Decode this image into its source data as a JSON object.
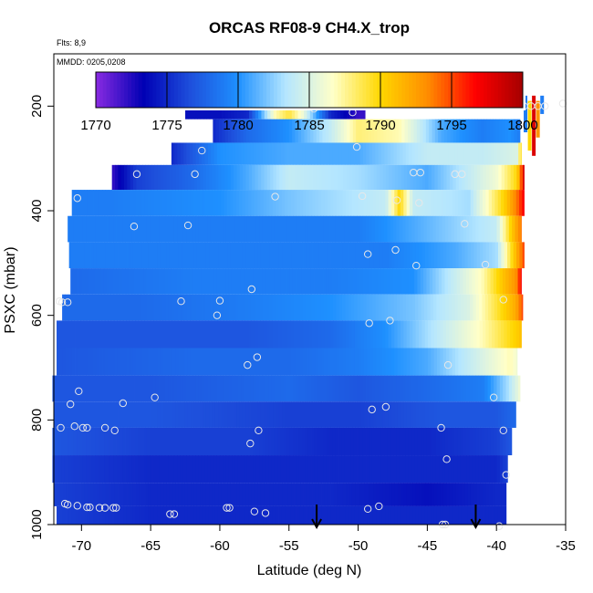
{
  "chart_data": {
    "type": "heatmap",
    "title": "ORCAS RF08-9 CH4.X_trop",
    "notes": {
      "flights": "Flts: 8,9",
      "dates": "MMDD: 0205,0208"
    },
    "xlabel": "Latitude (deg N)",
    "ylabel": "PSXC (mbar)",
    "xlim": [
      -72,
      -35
    ],
    "ylim": [
      1000,
      100
    ],
    "x_ticks": [
      -70,
      -65,
      -60,
      -55,
      -50,
      -45,
      -40,
      -35
    ],
    "y_ticks": [
      200,
      400,
      600,
      800,
      1000
    ],
    "colorbar": {
      "range": [
        1770,
        1800
      ],
      "ticks": [
        1770,
        1775,
        1780,
        1785,
        1790,
        1795,
        1800
      ],
      "colors": [
        "#8a2be2",
        "#0000b4",
        "#1e50dc",
        "#1e90ff",
        "#b4e6ff",
        "#ffffc8",
        "#ffd700",
        "#ff8c00",
        "#ff0000",
        "#a50000"
      ]
    },
    "layers": [
      {
        "p": 200,
        "lat_min": -62.5,
        "lat_max": -49.5,
        "values": [
          [
            -62.5,
            1774
          ],
          [
            -60,
            1774
          ],
          [
            -58,
            1775
          ],
          [
            -56,
            1787
          ],
          [
            -55,
            1789
          ],
          [
            -54,
            1786
          ],
          [
            -52,
            1775
          ],
          [
            -50,
            1772
          ]
        ]
      },
      {
        "p": 250,
        "lat_min": -60.5,
        "lat_max": -38.3,
        "values": [
          [
            -60.5,
            1775
          ],
          [
            -58,
            1778
          ],
          [
            -55,
            1780
          ],
          [
            -52,
            1784
          ],
          [
            -50,
            1788
          ],
          [
            -47,
            1787
          ],
          [
            -44,
            1781
          ],
          [
            -41,
            1779
          ],
          [
            -39,
            1780
          ],
          [
            -38.3,
            1779
          ]
        ]
      },
      {
        "p": 290,
        "lat_min": -63.5,
        "lat_max": -38.2,
        "values": [
          [
            -63.5,
            1775
          ],
          [
            -60,
            1780
          ],
          [
            -55,
            1781
          ],
          [
            -50,
            1781
          ],
          [
            -45,
            1784
          ],
          [
            -41,
            1784
          ],
          [
            -38.5,
            1785
          ],
          [
            -38.2,
            1790
          ]
        ]
      },
      {
        "p": 335,
        "lat_min": -67.8,
        "lat_max": -38.0,
        "values": [
          [
            -67.8,
            1772
          ],
          [
            -66,
            1776
          ],
          [
            -62,
            1778
          ],
          [
            -58,
            1781
          ],
          [
            -55,
            1784
          ],
          [
            -50,
            1783
          ],
          [
            -45,
            1781
          ],
          [
            -40,
            1786
          ],
          [
            -38.5,
            1790
          ],
          [
            -38,
            1798
          ]
        ]
      },
      {
        "p": 385,
        "lat_min": -70.7,
        "lat_max": -38.0,
        "values": [
          [
            -70.7,
            1779
          ],
          [
            -68,
            1779
          ],
          [
            -60,
            1780
          ],
          [
            -55,
            1782
          ],
          [
            -48,
            1784
          ],
          [
            -47,
            1790
          ],
          [
            -46,
            1784
          ],
          [
            -42,
            1783
          ],
          [
            -39.5,
            1790
          ],
          [
            -38.5,
            1794
          ],
          [
            -38,
            1797
          ]
        ]
      },
      {
        "p": 435,
        "lat_min": -71.0,
        "lat_max": -38.2,
        "values": [
          [
            -71,
            1779
          ],
          [
            -60,
            1779
          ],
          [
            -50,
            1779
          ],
          [
            -44,
            1782
          ],
          [
            -40,
            1784
          ],
          [
            -39,
            1790
          ],
          [
            -38.2,
            1794
          ]
        ]
      },
      {
        "p": 485,
        "lat_min": -70.9,
        "lat_max": -38.0,
        "values": [
          [
            -70.9,
            1779
          ],
          [
            -60,
            1779
          ],
          [
            -48,
            1779
          ],
          [
            -43,
            1781
          ],
          [
            -40,
            1783
          ],
          [
            -39,
            1789
          ],
          [
            -38,
            1795
          ]
        ]
      },
      {
        "p": 535,
        "lat_min": -70.8,
        "lat_max": -38.2,
        "values": [
          [
            -70.8,
            1778
          ],
          [
            -62,
            1779
          ],
          [
            -52,
            1779
          ],
          [
            -46,
            1780
          ],
          [
            -41,
            1787
          ],
          [
            -39.5,
            1791
          ],
          [
            -38.6,
            1793
          ],
          [
            -38.2,
            1797
          ]
        ]
      },
      {
        "p": 585,
        "lat_min": -71.4,
        "lat_max": -38.1,
        "values": [
          [
            -71.4,
            1778
          ],
          [
            -66,
            1778
          ],
          [
            -58,
            1779
          ],
          [
            -52,
            1780
          ],
          [
            -46,
            1782
          ],
          [
            -42,
            1785
          ],
          [
            -40,
            1789
          ],
          [
            -38.6,
            1792
          ],
          [
            -38.1,
            1795
          ]
        ]
      },
      {
        "p": 635,
        "lat_min": -71.8,
        "lat_max": -38.2,
        "values": [
          [
            -71.8,
            1777
          ],
          [
            -65,
            1777
          ],
          [
            -58,
            1777
          ],
          [
            -52,
            1778
          ],
          [
            -48,
            1780
          ],
          [
            -44,
            1784
          ],
          [
            -41,
            1787
          ],
          [
            -38.8,
            1790
          ],
          [
            -38.2,
            1791
          ]
        ]
      },
      {
        "p": 690,
        "lat_min": -71.8,
        "lat_max": -38.5,
        "values": [
          [
            -71.8,
            1777
          ],
          [
            -62,
            1778
          ],
          [
            -55,
            1778
          ],
          [
            -50,
            1779
          ],
          [
            -45,
            1781
          ],
          [
            -41,
            1785
          ],
          [
            -39,
            1787
          ],
          [
            -38.5,
            1786
          ]
        ]
      },
      {
        "p": 740,
        "lat_min": -72.1,
        "lat_max": -38.3,
        "values": [
          [
            -72.1,
            1777
          ],
          [
            -65,
            1777
          ],
          [
            -55,
            1778
          ],
          [
            -50,
            1777
          ],
          [
            -45,
            1778
          ],
          [
            -41,
            1779
          ],
          [
            -39.2,
            1783
          ],
          [
            -38.3,
            1786
          ]
        ]
      },
      {
        "p": 790,
        "lat_min": -72.0,
        "lat_max": -38.6,
        "values": [
          [
            -72,
            1777
          ],
          [
            -65,
            1777
          ],
          [
            -55,
            1776
          ],
          [
            -50,
            1776
          ],
          [
            -44,
            1777
          ],
          [
            -40,
            1777
          ],
          [
            -38.6,
            1778
          ]
        ]
      },
      {
        "p": 840,
        "lat_min": -72.1,
        "lat_max": -38.9,
        "values": [
          [
            -72.1,
            1777
          ],
          [
            -65,
            1776
          ],
          [
            -58,
            1776
          ],
          [
            -52,
            1775
          ],
          [
            -45,
            1775
          ],
          [
            -40,
            1776
          ],
          [
            -38.9,
            1777
          ]
        ]
      },
      {
        "p": 895,
        "lat_min": -72.1,
        "lat_max": -39.2,
        "values": [
          [
            -72.1,
            1776
          ],
          [
            -65,
            1775
          ],
          [
            -58,
            1775
          ],
          [
            -52,
            1775
          ],
          [
            -45,
            1775
          ],
          [
            -40,
            1775
          ],
          [
            -39.2,
            1776
          ]
        ]
      },
      {
        "p": 945,
        "lat_min": -72.0,
        "lat_max": -39.3,
        "values": [
          [
            -72,
            1776
          ],
          [
            -65,
            1775
          ],
          [
            -58,
            1775
          ],
          [
            -52,
            1775
          ],
          [
            -45,
            1774
          ],
          [
            -40,
            1775
          ],
          [
            -39.3,
            1775
          ]
        ]
      },
      {
        "p": 985,
        "lat_min": -71.8,
        "lat_max": -39.3,
        "values": [
          [
            -71.8,
            1776
          ],
          [
            -65,
            1775
          ],
          [
            -58,
            1775
          ],
          [
            -52,
            1775
          ],
          [
            -45,
            1775
          ],
          [
            -40,
            1775
          ],
          [
            -39.3,
            1775
          ]
        ]
      }
    ],
    "stripes": [
      {
        "lat": -37.9,
        "p_min": 180,
        "p_max": 250,
        "value": 1779
      },
      {
        "lat": -37.6,
        "p_min": 190,
        "p_max": 285,
        "value": 1790
      },
      {
        "lat": -37.3,
        "p_min": 180,
        "p_max": 295,
        "value": 1798
      },
      {
        "lat": -37.0,
        "p_min": 190,
        "p_max": 260,
        "value": 1793
      },
      {
        "lat": -36.7,
        "p_min": 180,
        "p_max": 215,
        "value": 1779
      }
    ],
    "samples": [
      [
        -62.3,
        195
      ],
      [
        -61.8,
        200
      ],
      [
        -49.8,
        190
      ],
      [
        -50.7,
        190
      ],
      [
        -53.2,
        205
      ],
      [
        -50.4,
        212
      ],
      [
        -38.0,
        200
      ],
      [
        -37.5,
        200
      ],
      [
        -37.0,
        200
      ],
      [
        -36.5,
        200
      ],
      [
        -35.2,
        195
      ],
      [
        -61.3,
        285
      ],
      [
        -50.1,
        278
      ],
      [
        -66.0,
        330
      ],
      [
        -61.8,
        330
      ],
      [
        -46.0,
        327
      ],
      [
        -45.5,
        327
      ],
      [
        -43.0,
        330
      ],
      [
        -42.5,
        330
      ],
      [
        -70.3,
        376
      ],
      [
        -56.0,
        373
      ],
      [
        -49.7,
        372
      ],
      [
        -47.2,
        380
      ],
      [
        -45.6,
        385
      ],
      [
        -66.2,
        430
      ],
      [
        -62.3,
        428
      ],
      [
        -42.3,
        425
      ],
      [
        -47.3,
        475
      ],
      [
        -49.3,
        483
      ],
      [
        -45.8,
        505
      ],
      [
        -40.8,
        503
      ],
      [
        -71.6,
        573
      ],
      [
        -71.4,
        575
      ],
      [
        -71.0,
        575
      ],
      [
        -62.8,
        573
      ],
      [
        -60.0,
        572
      ],
      [
        -57.7,
        550
      ],
      [
        -39.5,
        570
      ],
      [
        -60.2,
        600
      ],
      [
        -49.2,
        615
      ],
      [
        -47.7,
        610
      ],
      [
        -57.3,
        680
      ],
      [
        -58.0,
        695
      ],
      [
        -43.5,
        695
      ],
      [
        -70.2,
        745
      ],
      [
        -70.8,
        770
      ],
      [
        -67.0,
        768
      ],
      [
        -64.7,
        757
      ],
      [
        -40.2,
        757
      ],
      [
        -49.0,
        780
      ],
      [
        -48.0,
        775
      ],
      [
        -71.5,
        815
      ],
      [
        -70.5,
        812
      ],
      [
        -69.9,
        815
      ],
      [
        -69.6,
        815
      ],
      [
        -68.3,
        815
      ],
      [
        -67.6,
        820
      ],
      [
        -57.2,
        820
      ],
      [
        -57.8,
        845
      ],
      [
        -44.0,
        815
      ],
      [
        -39.5,
        820
      ],
      [
        -43.6,
        875
      ],
      [
        -39.3,
        905
      ],
      [
        -71.2,
        960
      ],
      [
        -71.0,
        962
      ],
      [
        -70.3,
        964
      ],
      [
        -69.6,
        967
      ],
      [
        -69.4,
        967
      ],
      [
        -68.7,
        968
      ],
      [
        -68.3,
        968
      ],
      [
        -67.7,
        968
      ],
      [
        -67.5,
        968
      ],
      [
        -63.6,
        980
      ],
      [
        -63.3,
        980
      ],
      [
        -59.5,
        968
      ],
      [
        -59.3,
        968
      ],
      [
        -57.5,
        975
      ],
      [
        -56.7,
        978
      ],
      [
        -49.3,
        970
      ],
      [
        -48.5,
        965
      ],
      [
        -43.9,
        1000
      ],
      [
        -43.7,
        1000
      ],
      [
        -39.8,
        1003
      ]
    ],
    "arrows": [
      {
        "lat": -53.0
      },
      {
        "lat": -41.5
      }
    ]
  }
}
